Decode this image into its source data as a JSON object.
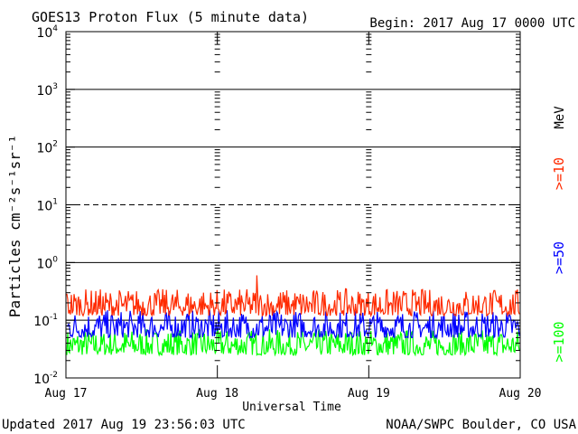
{
  "chart_data": {
    "type": "line",
    "title": "GOES13 Proton Flux (5 minute data)",
    "begin_label": "Begin: 2017 Aug 17 0000 UTC",
    "xlabel": "Universal Time",
    "ylabel": "Particles cm⁻²s⁻¹sr⁻¹",
    "y_scale": "log",
    "ylim": [
      0.01,
      10000
    ],
    "x_ticks": [
      "Aug 17",
      "Aug 18",
      "Aug 19",
      "Aug 20"
    ],
    "y_ticks": [
      {
        "base": "10",
        "exp": "4"
      },
      {
        "base": "10",
        "exp": "3"
      },
      {
        "base": "10",
        "exp": "2"
      },
      {
        "base": "10",
        "exp": "1"
      },
      {
        "base": "10",
        "exp": "0"
      },
      {
        "base": "10",
        "exp": "-1"
      },
      {
        "base": "10",
        "exp": "-2"
      }
    ],
    "threshold_lines": [
      1000,
      100,
      10,
      1,
      0.1
    ],
    "unit_label": "MeV",
    "series": [
      {
        "name": ">=10",
        "color": "#ff2a00",
        "typical_range": [
          0.12,
          0.35
        ],
        "peak": 0.6
      },
      {
        "name": ">=50",
        "color": "#0000ff",
        "typical_range": [
          0.05,
          0.15
        ]
      },
      {
        "name": ">=100",
        "color": "#00ff00",
        "typical_range": [
          0.025,
          0.07
        ]
      }
    ]
  },
  "footer": {
    "updated": "Updated 2017 Aug 19 23:56:03 UTC",
    "credit": "NOAA/SWPC Boulder, CO USA"
  }
}
